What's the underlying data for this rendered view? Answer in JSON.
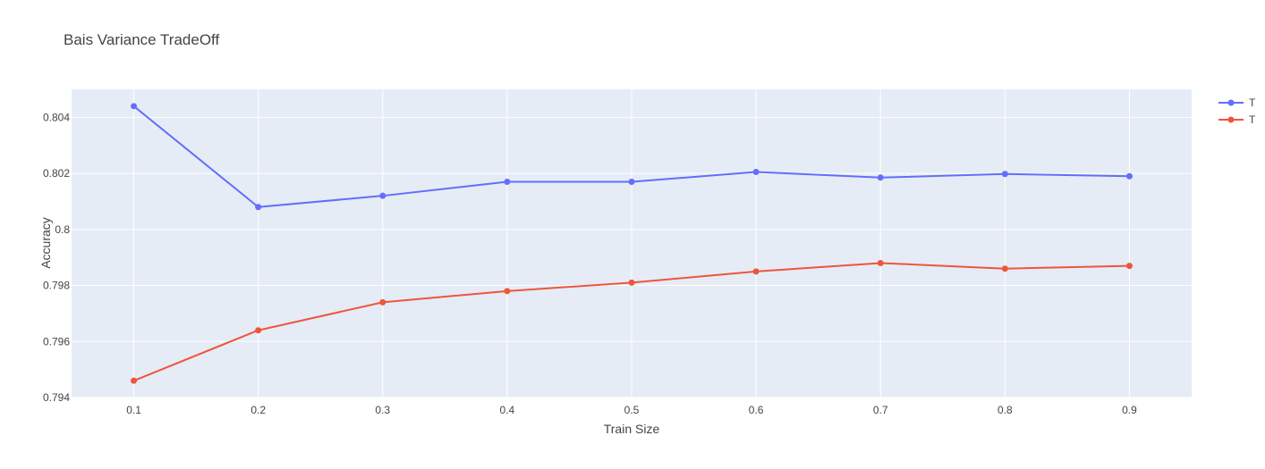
{
  "chart_data": {
    "type": "line",
    "title": "Bais Variance TradeOff",
    "xlabel": "Train Size",
    "ylabel": "Accuracy",
    "x": [
      0.1,
      0.2,
      0.3,
      0.4,
      0.5,
      0.6,
      0.7,
      0.8,
      0.9
    ],
    "x_tick_labels": [
      "0.1",
      "0.2",
      "0.3",
      "0.4",
      "0.5",
      "0.6",
      "0.7",
      "0.8",
      "0.9"
    ],
    "xlim": [
      0.05,
      0.95
    ],
    "ylim": [
      0.794,
      0.805
    ],
    "y_ticks": [
      0.794,
      0.796,
      0.798,
      0.8,
      0.802,
      0.804
    ],
    "y_tick_labels": [
      "0.794",
      "0.796",
      "0.798",
      "0.8",
      "0.802",
      "0.804"
    ],
    "grid": true,
    "legend_position": "top-right",
    "series": [
      {
        "name": "T",
        "color": "#636efa",
        "values": [
          0.8044,
          0.8008,
          0.8012,
          0.8017,
          0.8017,
          0.80205,
          0.80185,
          0.80198,
          0.8019
        ]
      },
      {
        "name": "T",
        "color": "#ef553b",
        "values": [
          0.7946,
          0.7964,
          0.7974,
          0.7978,
          0.7981,
          0.7985,
          0.7988,
          0.7986,
          0.7987
        ]
      }
    ],
    "plot_bg": "#e5ecf6",
    "grid_color": "#ffffff"
  }
}
